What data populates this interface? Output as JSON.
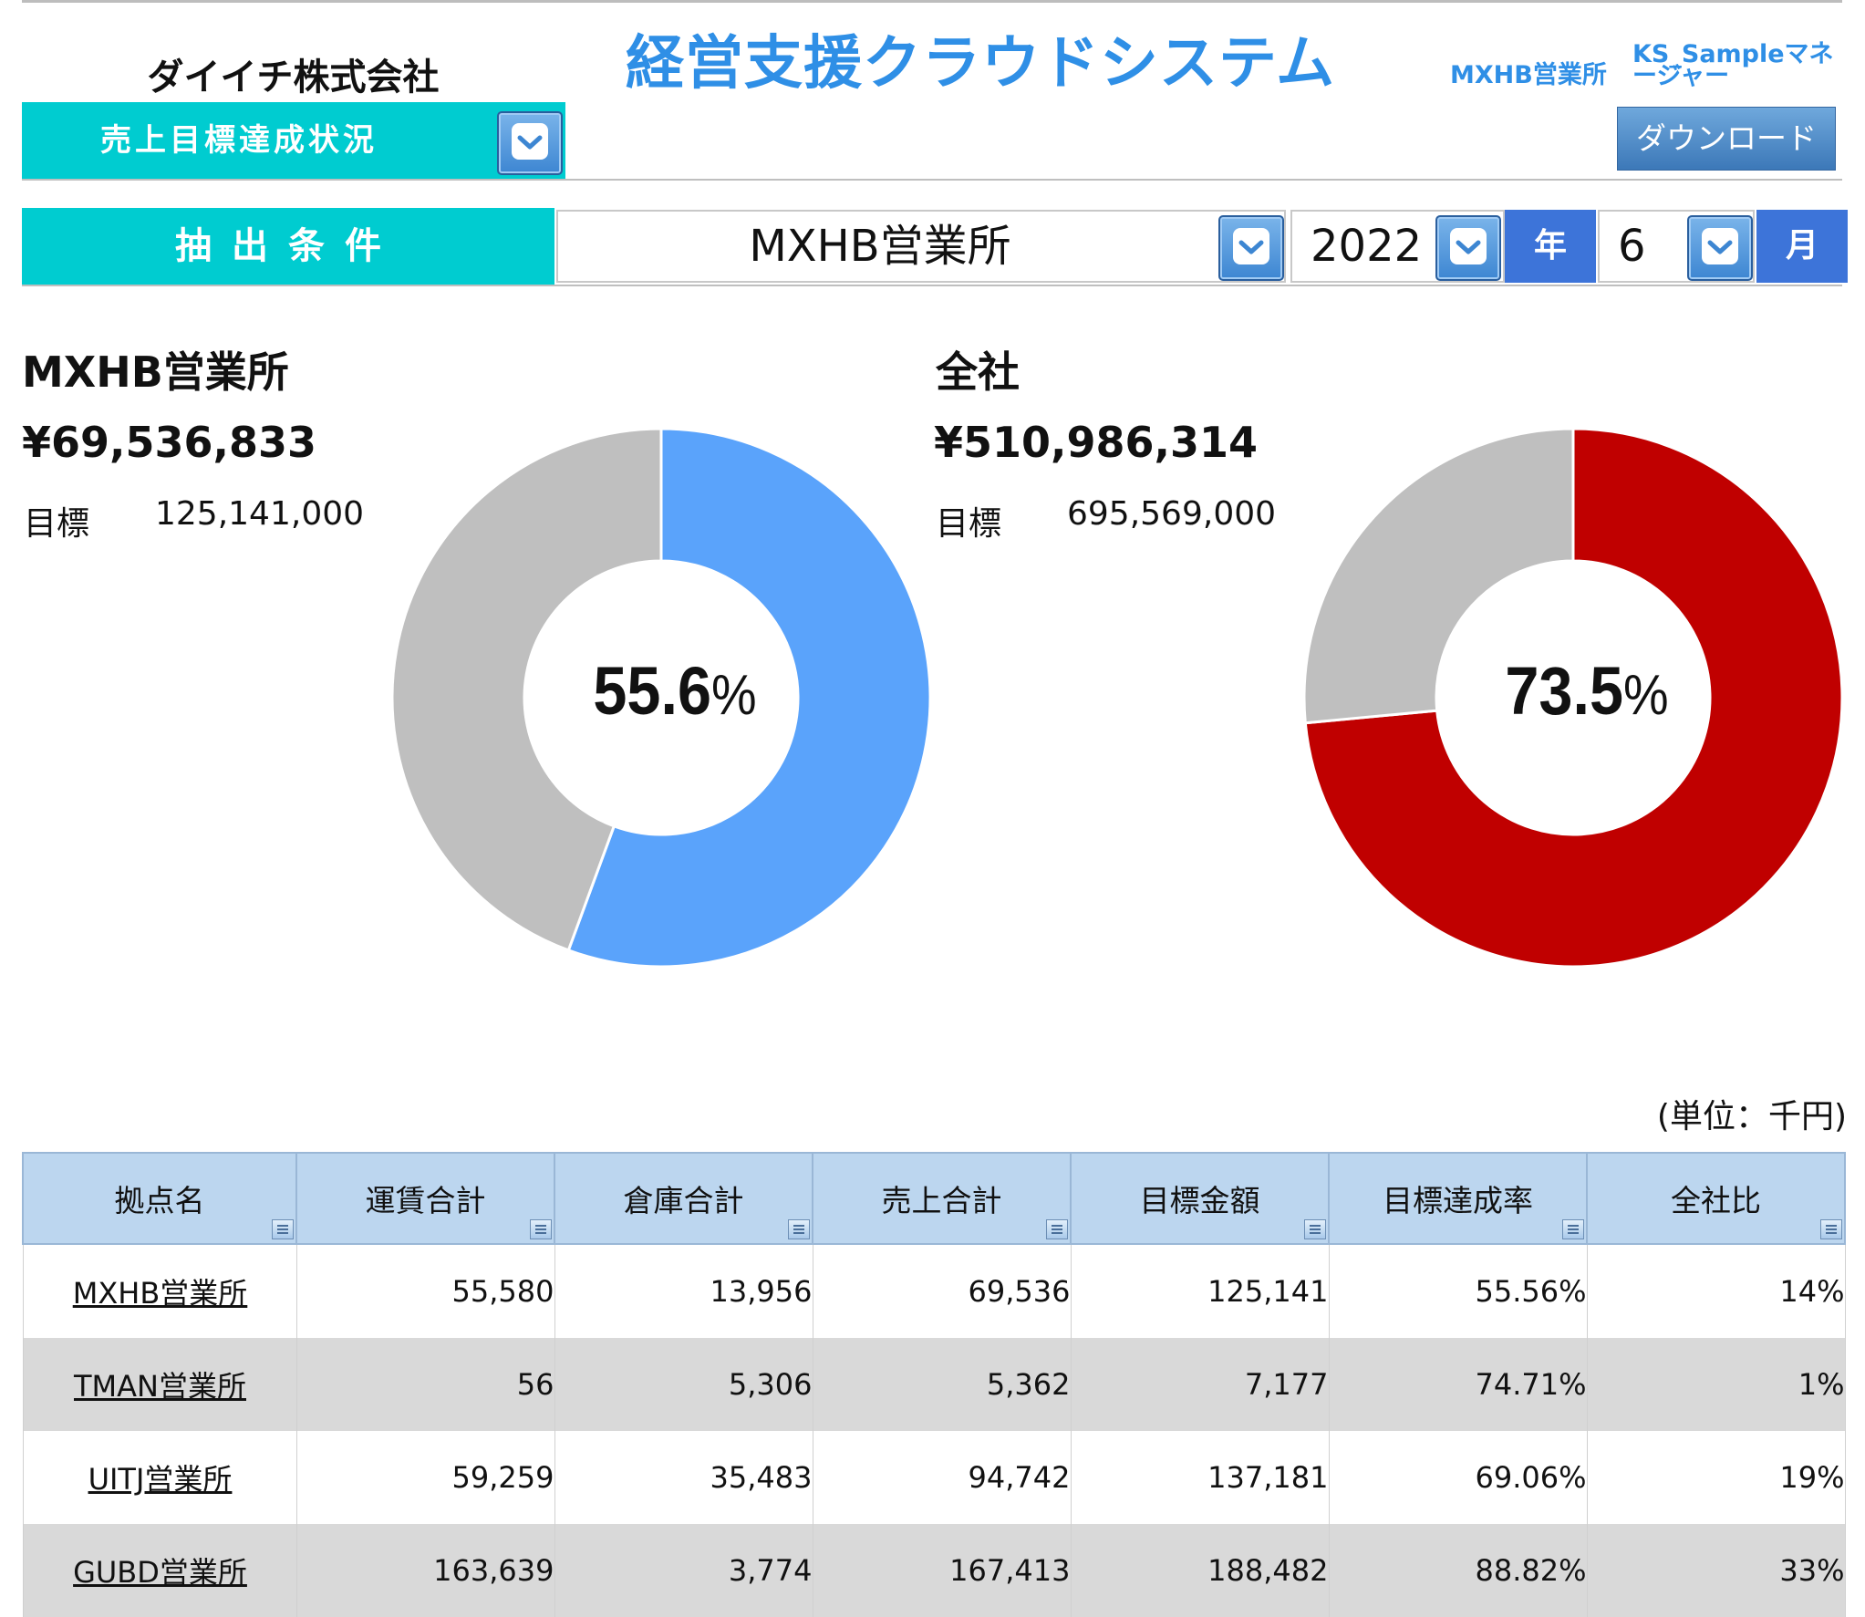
{
  "header": {
    "company": "ダイイチ株式会社",
    "app_title": "経営支援クラウドシステム",
    "office": "MXHB営業所",
    "user": "KS_Sampleマネージャー",
    "menu_label": "売上目標達成状況",
    "download_label": "ダウンロード"
  },
  "conditions": {
    "label": "抽出条件",
    "office": "MXHB営業所",
    "year": "2022",
    "year_unit": "年",
    "month": "6",
    "month_unit": "月"
  },
  "summary_office": {
    "title": "MXHB営業所",
    "amount": "¥69,536,833",
    "target_label": "目標",
    "target": "125,141,000",
    "rate_num": "55.6",
    "rate_unit": "%",
    "rate": 0.556,
    "color": "#5aa3fb",
    "rest_color": "#bfbfbf"
  },
  "summary_company": {
    "title": "全社",
    "amount": "¥510,986,314",
    "target_label": "目標",
    "target": "695,569,000",
    "rate_num": "73.5",
    "rate_unit": "%",
    "rate": 0.735,
    "color": "#c00000",
    "rest_color": "#bfbfbf"
  },
  "table": {
    "unit_note": "(単位：千円)",
    "headers": [
      "拠点名",
      "運賃合計",
      "倉庫合計",
      "売上合計",
      "目標金額",
      "目標達成率",
      "全社比"
    ],
    "rows": [
      [
        "MXHB営業所",
        "55,580",
        "13,956",
        "69,536",
        "125,141",
        "55.56%",
        "14%"
      ],
      [
        "TMAN営業所",
        "56",
        "5,306",
        "5,362",
        "7,177",
        "74.71%",
        "1%"
      ],
      [
        "UITJ営業所",
        "59,259",
        "35,483",
        "94,742",
        "137,181",
        "69.06%",
        "19%"
      ],
      [
        "GUBD営業所",
        "163,639",
        "3,774",
        "167,413",
        "188,482",
        "88.82%",
        "33%"
      ]
    ]
  },
  "icons": {
    "dropdown": "chevron-down-icon",
    "filter": "filter-icon"
  }
}
